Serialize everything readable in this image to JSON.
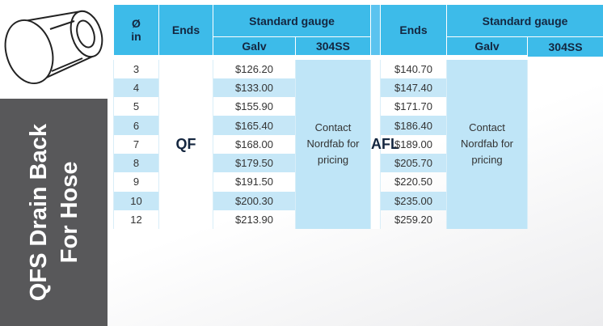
{
  "title": [
    "QFS Drain Back",
    "For Hose"
  ],
  "table": {
    "header": {
      "dia": [
        "Ø",
        "in"
      ],
      "ends": "Ends",
      "gauge": "Standard gauge",
      "galv": "Galv",
      "ss": "304SS"
    },
    "sections": [
      {
        "ends": "QF",
        "note": "Contact Nordfab for pricing"
      },
      {
        "ends": "AFL",
        "note": "Contact Nordfab for pricing"
      }
    ],
    "rows": [
      [
        "3",
        "$126.20",
        "$140.70"
      ],
      [
        "4",
        "$133.00",
        "$147.40"
      ],
      [
        "5",
        "$155.90",
        "$171.70"
      ],
      [
        "6",
        "$165.40",
        "$186.40"
      ],
      [
        "7",
        "$168.00",
        "$189.00"
      ],
      [
        "8",
        "$179.50",
        "$205.70"
      ],
      [
        "9",
        "$191.50",
        "$220.50"
      ],
      [
        "10",
        "$200.30",
        "$235.00"
      ],
      [
        "12",
        "$213.90",
        "$259.20"
      ]
    ]
  }
}
